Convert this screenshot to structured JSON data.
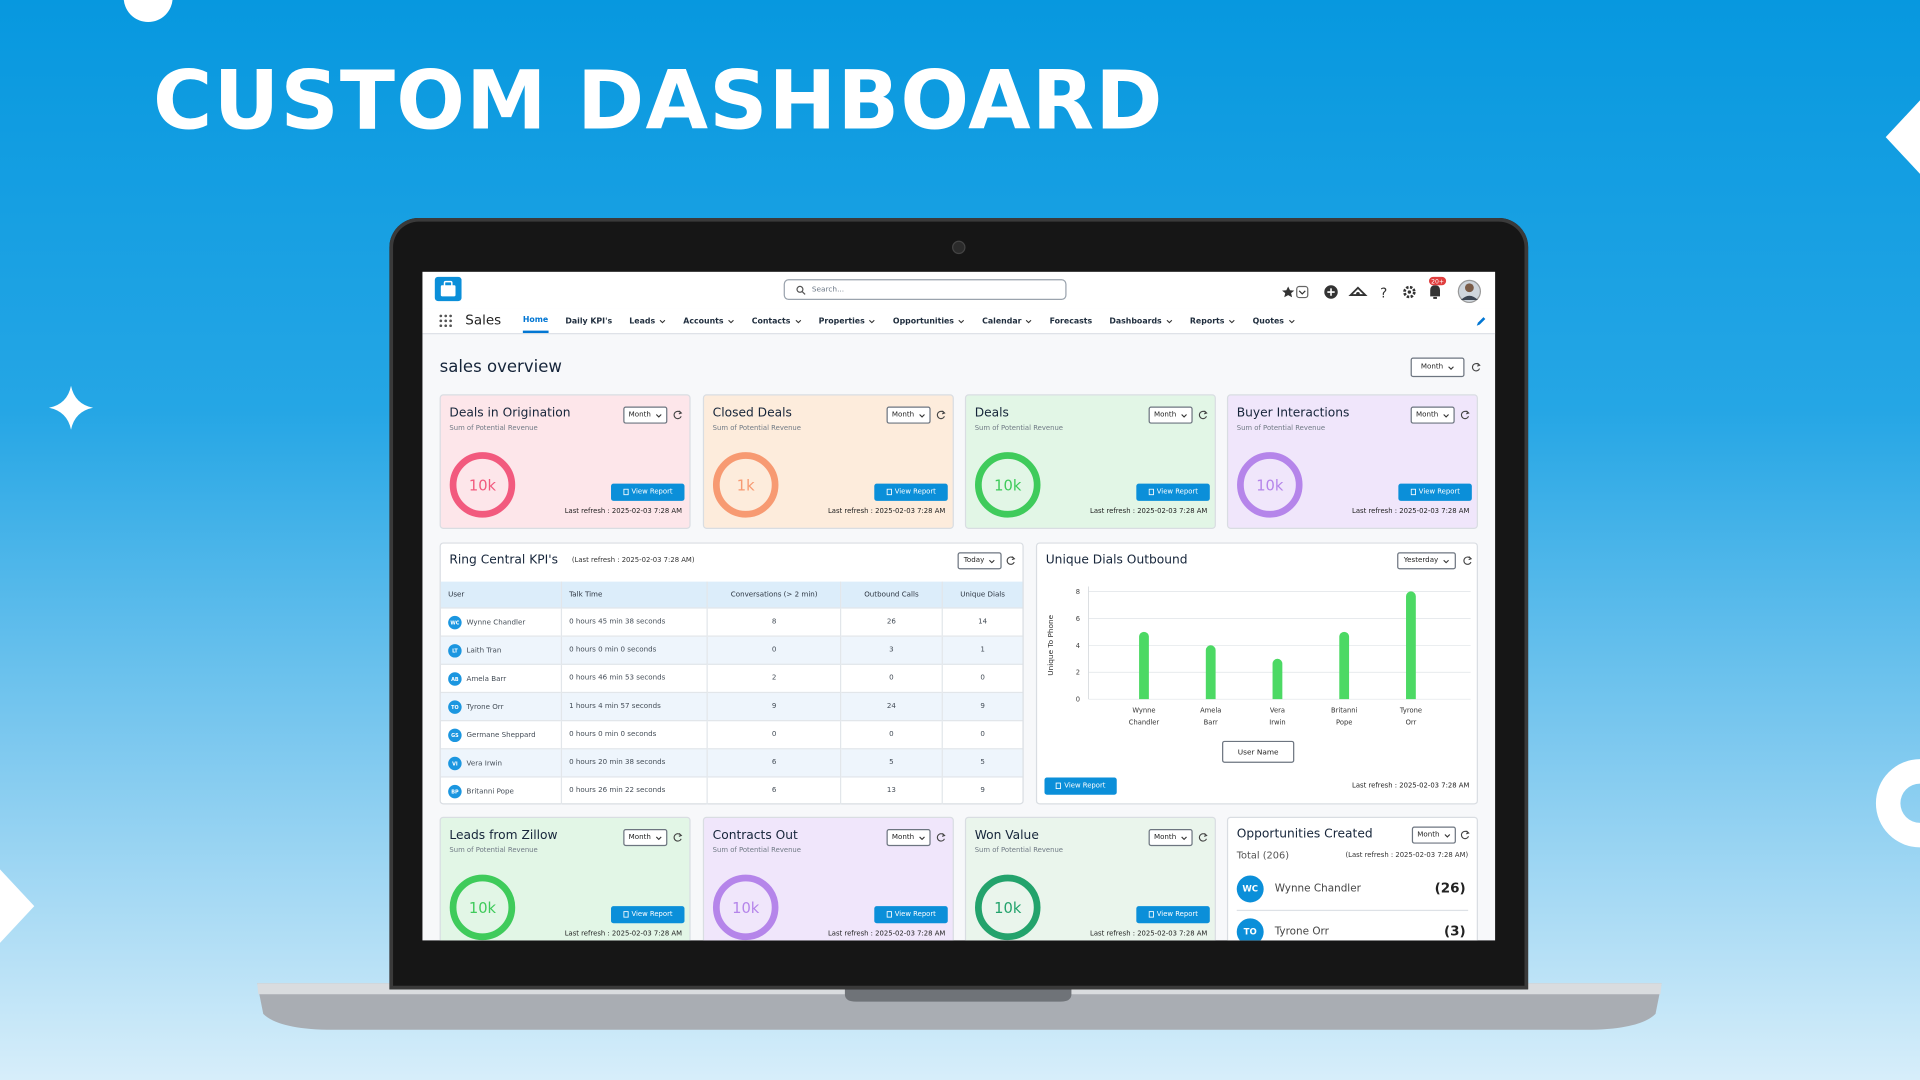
{
  "hero": {
    "title": "CUSTOM DASHBOARD"
  },
  "header": {
    "app": "Sales",
    "search": "Search...",
    "badge": "20+"
  },
  "nav": [
    {
      "label": "Home",
      "menu": false,
      "active": true
    },
    {
      "label": "Daily KPI's",
      "menu": false,
      "active": false
    },
    {
      "label": "Leads",
      "menu": true,
      "active": false
    },
    {
      "label": "Accounts",
      "menu": true,
      "active": false
    },
    {
      "label": "Contacts",
      "menu": true,
      "active": false
    },
    {
      "label": "Properties",
      "menu": true,
      "active": false
    },
    {
      "label": "Opportunities",
      "menu": true,
      "active": false
    },
    {
      "label": "Calendar",
      "menu": true,
      "active": false
    },
    {
      "label": "Forecasts",
      "menu": false,
      "active": false
    },
    {
      "label": "Dashboards",
      "menu": true,
      "active": false
    },
    {
      "label": "Reports",
      "menu": true,
      "active": false
    },
    {
      "label": "Quotes",
      "menu": true,
      "active": false
    }
  ],
  "page": {
    "title": "sales overview",
    "period": "Month"
  },
  "cards": [
    {
      "title": "Deals in Origination",
      "subtitle": "Sum of Potential Revenue",
      "period": "Month",
      "value": "10k",
      "button": "View Report",
      "refresh": "Last refresh : 2025-02-03 7:28 AM",
      "bg": "#fde6ea",
      "ring": "#f25a7e"
    },
    {
      "title": "Closed Deals",
      "subtitle": "Sum of Potential Revenue",
      "period": "Month",
      "value": "1k",
      "button": "View Report",
      "refresh": "Last refresh : 2025-02-03 7:28 AM",
      "bg": "#fdecdc",
      "ring": "#f79a72"
    },
    {
      "title": "Deals",
      "subtitle": "Sum of Potential Revenue",
      "period": "Month",
      "value": "10k",
      "button": "View Report",
      "refresh": "Last refresh : 2025-02-03 7:28 AM",
      "bg": "#e2f6e6",
      "ring": "#3fcb5b"
    },
    {
      "title": "Buyer Interactions",
      "subtitle": "Sum of Potential Revenue",
      "period": "Month",
      "value": "10k",
      "button": "View Report",
      "refresh": "Last refresh : 2025-02-03 7:28 AM",
      "bg": "#f0e6fb",
      "ring": "#b585ea"
    }
  ],
  "ring_central": {
    "title": "Ring Central KPI's",
    "refresh": "(Last refresh : 2025-02-03 7:28 AM)",
    "period": "Today",
    "columns": [
      "User",
      "Talk Time",
      "Conversations (> 2 min)",
      "Outbound Calls",
      "Unique Dials"
    ],
    "rows": [
      {
        "initials": "WC",
        "user": "Wynne Chandler",
        "talk_time": "0 hours 45 min 38 seconds",
        "conversations": 8,
        "outbound": 26,
        "unique": 14
      },
      {
        "initials": "LT",
        "user": "Laith Tran",
        "talk_time": "0 hours 0 min 0 seconds",
        "conversations": 0,
        "outbound": 3,
        "unique": 1
      },
      {
        "initials": "AB",
        "user": "Amela Barr",
        "talk_time": "0 hours 46 min 53 seconds",
        "conversations": 2,
        "outbound": 0,
        "unique": 0
      },
      {
        "initials": "TO",
        "user": "Tyrone Orr",
        "talk_time": "1 hours 4 min 57 seconds",
        "conversations": 9,
        "outbound": 24,
        "unique": 9
      },
      {
        "initials": "GS",
        "user": "Germane Sheppard",
        "talk_time": "0 hours 0 min 0 seconds",
        "conversations": 0,
        "outbound": 0,
        "unique": 0
      },
      {
        "initials": "VI",
        "user": "Vera Irwin",
        "talk_time": "0 hours 20 min 38 seconds",
        "conversations": 6,
        "outbound": 5,
        "unique": 5
      },
      {
        "initials": "BP",
        "user": "Britanni Pope",
        "talk_time": "0 hours 26 min 22 seconds",
        "conversations": 6,
        "outbound": 13,
        "unique": 9
      }
    ]
  },
  "chart_data": {
    "type": "bar",
    "title": "Unique Dials Outbound",
    "period": "Yesterday",
    "y_label": "Unique To Phone",
    "x_label": "User Name",
    "categories": [
      "Wynne Chandler",
      "Amela Barr",
      "Vera Irwin",
      "Britanni Pope",
      "Tyrone Orr"
    ],
    "values": [
      5,
      4,
      3,
      5,
      8
    ],
    "color": "#4cd964",
    "ylim": [
      0,
      8
    ],
    "yticks": [
      0,
      2,
      4,
      6,
      8
    ],
    "grid": true,
    "button": "View Report",
    "refresh": "Last refresh : 2025-02-03 7:28 AM"
  },
  "cards_bottom": [
    {
      "title": "Leads from Zillow",
      "subtitle": "Sum of Potential Revenue",
      "period": "Month",
      "value": "10k",
      "button": "View Report",
      "refresh": "Last refresh : 2025-02-03 7:28 AM",
      "bg": "#e2f6e6",
      "ring": "#3fcb5b"
    },
    {
      "title": "Contracts Out",
      "subtitle": "Sum of Potential Revenue",
      "period": "Month",
      "value": "10k",
      "button": "View Report",
      "refresh": "Last refresh : 2025-02-03 7:28 AM",
      "bg": "#f0e6fb",
      "ring": "#b585ea"
    },
    {
      "title": "Won Value",
      "subtitle": "Sum of Potential Revenue",
      "period": "Month",
      "value": "10k",
      "button": "View Report",
      "refresh": "Last refresh : 2025-02-03 7:28 AM",
      "bg": "#eaf5ec",
      "ring": "#23a36c"
    }
  ],
  "opportunities": {
    "title": "Opportunities Created",
    "period": "Month",
    "total": "Total (206)",
    "refresh": "(Last refresh : 2025-02-03 7:28 AM)",
    "items": [
      {
        "initials": "WC",
        "name": "Wynne Chandler",
        "count": "(26)"
      },
      {
        "initials": "TO",
        "name": "Tyrone Orr",
        "count": "(3)"
      }
    ]
  }
}
